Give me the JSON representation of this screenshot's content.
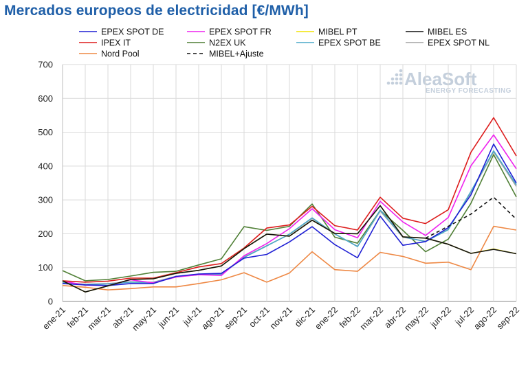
{
  "chart_data": {
    "type": "line",
    "title": "Mercados europeos de electricidad [€/MWh]",
    "xlabel": "",
    "ylabel": "",
    "ylim": [
      0,
      700
    ],
    "yticks": [
      0,
      100,
      200,
      300,
      400,
      500,
      600,
      700
    ],
    "grid": true,
    "legend_position": "top",
    "categories": [
      "ene-21",
      "feb-21",
      "mar-21",
      "abr-21",
      "may-21",
      "jun-21",
      "jul-21",
      "ago-21",
      "sep-21",
      "oct-21",
      "nov-21",
      "dic-21",
      "ene-22",
      "feb-22",
      "mar-22",
      "abr-22",
      "may-22",
      "jun-22",
      "jul-22",
      "ago-22",
      "sep-22"
    ],
    "series": [
      {
        "name": "EPEX SPOT DE",
        "color": "#1f1fd4",
        "dash": "solid",
        "values": [
          53,
          49,
          47,
          53,
          53,
          74,
          81,
          83,
          128,
          139,
          176,
          221,
          168,
          129,
          252,
          166,
          177,
          218,
          315,
          465,
          350
        ]
      },
      {
        "name": "EPEX SPOT FR",
        "color": "#ee22ee",
        "dash": "solid",
        "values": [
          60,
          48,
          47,
          64,
          55,
          72,
          79,
          77,
          135,
          171,
          215,
          274,
          212,
          188,
          296,
          235,
          195,
          248,
          401,
          492,
          392
        ]
      },
      {
        "name": "MIBEL PT",
        "color": "#f2e400",
        "dash": "solid",
        "values": [
          61,
          28,
          46,
          65,
          67,
          83,
          92,
          105,
          156,
          199,
          193,
          240,
          201,
          200,
          283,
          191,
          187,
          169,
          142,
          155,
          141
        ]
      },
      {
        "name": "MIBEL ES",
        "color": "#111111",
        "dash": "solid",
        "values": [
          61,
          28,
          46,
          65,
          67,
          83,
          92,
          105,
          156,
          199,
          193,
          240,
          201,
          200,
          283,
          191,
          187,
          169,
          142,
          154,
          141
        ]
      },
      {
        "name": "IPEX IT",
        "color": "#dd1c1c",
        "dash": "solid",
        "values": [
          61,
          57,
          60,
          69,
          69,
          85,
          102,
          112,
          158,
          217,
          226,
          281,
          224,
          211,
          308,
          246,
          230,
          271,
          441,
          543,
          430
        ]
      },
      {
        "name": "N2EX UK",
        "color": "#4f7f35",
        "dash": "solid",
        "values": [
          91,
          61,
          65,
          75,
          86,
          89,
          108,
          126,
          221,
          210,
          222,
          288,
          190,
          172,
          269,
          210,
          147,
          184,
          290,
          434,
          309
        ]
      },
      {
        "name": "EPEX SPOT BE",
        "color": "#4aa8c8",
        "dash": "solid",
        "values": [
          55,
          50,
          52,
          57,
          56,
          73,
          79,
          80,
          130,
          164,
          199,
          247,
          200,
          162,
          270,
          191,
          177,
          212,
          325,
          445,
          345
        ]
      },
      {
        "name": "EPEX SPOT NL",
        "color": "#a3a3a3",
        "dash": "solid",
        "values": [
          56,
          51,
          53,
          58,
          57,
          74,
          80,
          82,
          131,
          165,
          198,
          246,
          199,
          163,
          267,
          190,
          178,
          213,
          322,
          442,
          340
        ]
      },
      {
        "name": "Nord Pool",
        "color": "#ee8844",
        "dash": "solid",
        "values": [
          47,
          42,
          34,
          38,
          43,
          43,
          53,
          64,
          85,
          57,
          84,
          147,
          94,
          89,
          145,
          133,
          113,
          116,
          94,
          222,
          211
        ]
      },
      {
        "name": "MIBEL+Ajuste",
        "color": "#111111",
        "dash": "dashed",
        "values": [
          null,
          null,
          null,
          null,
          null,
          null,
          null,
          null,
          null,
          null,
          null,
          null,
          null,
          null,
          null,
          null,
          187,
          222,
          258,
          308,
          243
        ]
      }
    ]
  },
  "watermark": {
    "brand": "AleaSoft",
    "tagline": "ENERGY FORECASTING"
  }
}
